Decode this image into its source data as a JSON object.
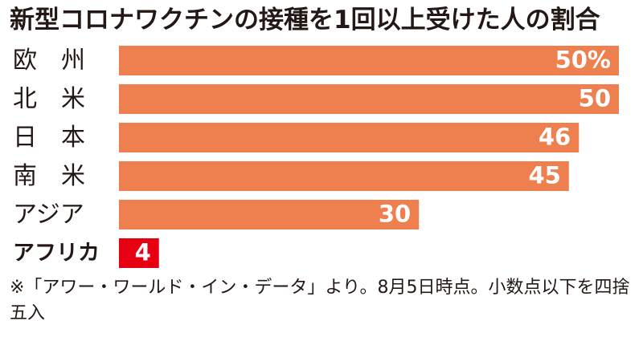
{
  "chart_data": {
    "type": "bar",
    "orientation": "horizontal",
    "title": "新型コロナワクチンの接種を1回以上受けた人の割合",
    "categories": [
      "欧州",
      "北米",
      "日本",
      "南米",
      "アジア",
      "アフリカ"
    ],
    "category_display": [
      "欧　州",
      "北　米",
      "日　本",
      "南　米",
      "アジア",
      "アフリカ"
    ],
    "values": [
      50,
      50,
      46,
      45,
      30,
      4
    ],
    "value_labels": [
      "50%",
      "50",
      "46",
      "45",
      "30",
      "4"
    ],
    "highlight_category": "アフリカ",
    "xlabel": "",
    "ylabel": "",
    "xlim": [
      0,
      50
    ],
    "grid": false,
    "legend": "none",
    "colors": {
      "bar": "#ee7f4f",
      "highlight_bar": "#e60012",
      "text": "#231815",
      "value_text": "#ffffff",
      "background": "#ffffff"
    }
  },
  "footnote": "※「アワー・ワールド・イン・データ」より。8月5日時点。小数点以下を四捨五入"
}
